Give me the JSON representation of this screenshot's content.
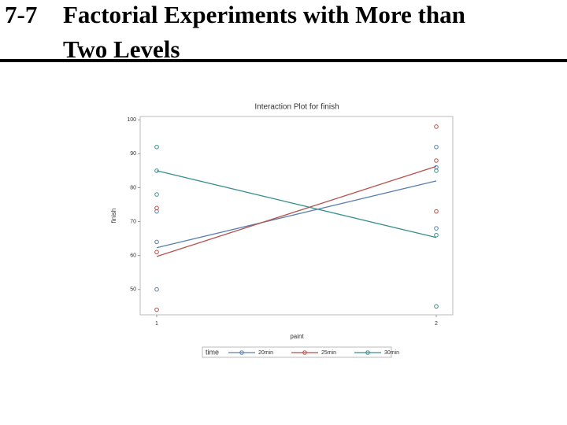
{
  "slide": {
    "number": "7-7",
    "title_line1": "Factorial Experiments with More than",
    "title_line2": "Two Levels"
  },
  "chart_data": {
    "type": "interaction",
    "title": "Interaction Plot for finish",
    "x_label": "paint",
    "y_label": "finish",
    "categories": [
      "1",
      "2"
    ],
    "legend_title": "time",
    "series": [
      {
        "name": "20min",
        "color": "#5b7fb0",
        "values": [
          62.3,
          82
        ],
        "points": [
          [
            73,
            64,
            50
          ],
          [
            92,
            86,
            68
          ]
        ]
      },
      {
        "name": "25min",
        "color": "#b5524c",
        "values": [
          59.7,
          86.3
        ],
        "points": [
          [
            74,
            61,
            44
          ],
          [
            98,
            88,
            73
          ]
        ]
      },
      {
        "name": "30min",
        "color": "#3a8f8f",
        "values": [
          85,
          65.3
        ],
        "points": [
          [
            92,
            85,
            78
          ],
          [
            85,
            66,
            45
          ]
        ]
      }
    ],
    "ylim": [
      42.5,
      101
    ],
    "yticks": [
      50,
      60,
      70,
      80,
      90,
      100
    ],
    "grid": false
  }
}
